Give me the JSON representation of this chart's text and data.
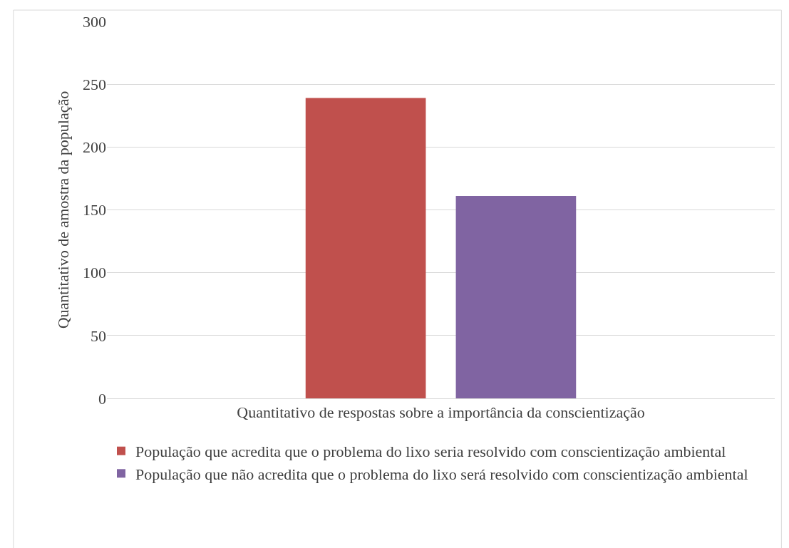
{
  "chart_data": {
    "type": "bar",
    "categories": [
      "Quantitativo de respostas sobre a importância da conscientização"
    ],
    "ylabel": "Quantitativo de amostra da população",
    "series": [
      {
        "name": "População que acredita que o problema do lixo seria resolvido com conscientização ambiental",
        "color": "#c0504d",
        "values": [
          239
        ]
      },
      {
        "name": "População que não acredita que o problema do lixo será resolvido com conscientização ambiental",
        "color": "#8064a2",
        "values": [
          161
        ]
      }
    ],
    "ylim": [
      0,
      300
    ],
    "yticks": [
      0,
      50,
      100,
      150,
      200,
      250,
      300
    ],
    "grid": "y",
    "legend": "bottom left"
  }
}
